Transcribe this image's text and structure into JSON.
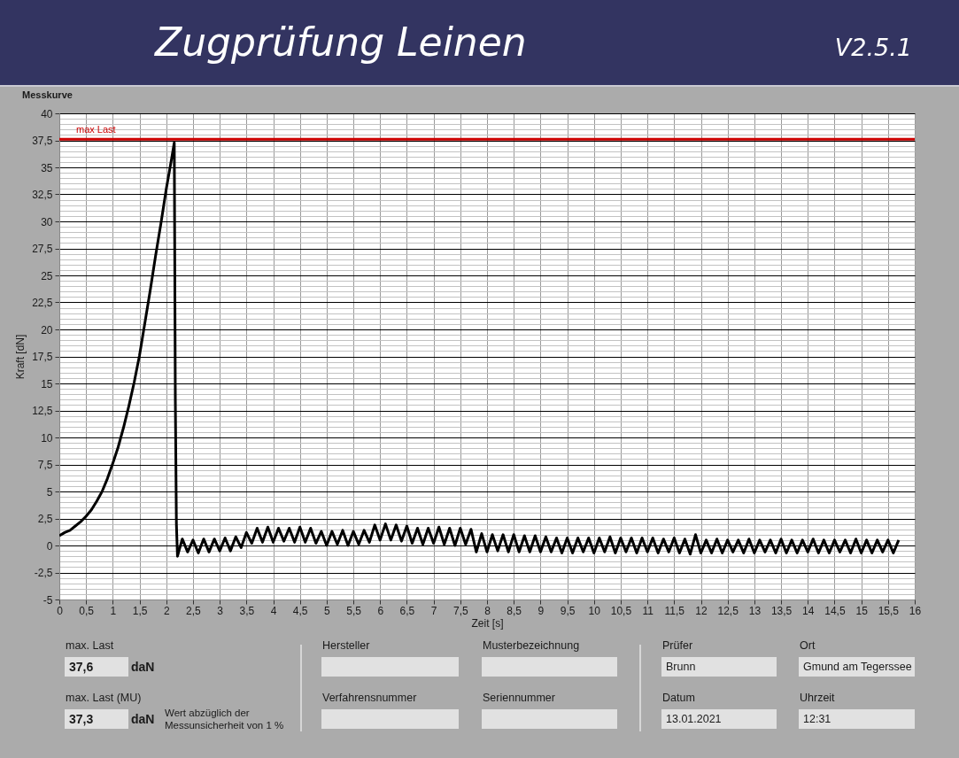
{
  "chart_data": {
    "type": "line",
    "title": "Zugprüfung Leinen",
    "subtitle": "Messkurve",
    "xlabel": "Zeit [s]",
    "ylabel": "Kraft [dN]",
    "annotations": [
      "V2.5.1",
      "max. Last",
      "37,6",
      "daN",
      "max. Last (MU)",
      "37,3",
      "daN",
      "Wert abzüglich der Messunsicherheit von 1 %",
      "Hersteller",
      "Verfahrensnummer",
      "Musterbezeichnung",
      "Seriennummer",
      "Prüfer",
      "Brunn",
      "Datum",
      "13.01.2021",
      "Ort",
      "Gmund am Tegerssee",
      "Uhrzeit",
      "12:31"
    ],
    "xlim": [
      0,
      16
    ],
    "ylim": [
      -5,
      40
    ],
    "xticks": [
      0,
      {
        "value": 0.5,
        "label": "0,5"
      },
      1,
      {
        "value": 1.5,
        "label": "1,5"
      },
      2,
      {
        "value": 2.5,
        "label": "2,5"
      },
      3,
      {
        "value": 3.5,
        "label": "3,5"
      },
      4,
      {
        "value": 4.5,
        "label": "4,5"
      },
      5,
      {
        "value": 5.5,
        "label": "5,5"
      },
      6,
      {
        "value": 6.5,
        "label": "6,5"
      },
      7,
      {
        "value": 7.5,
        "label": "7,5"
      },
      8,
      {
        "value": 8.5,
        "label": "8,5"
      },
      9,
      {
        "value": 9.5,
        "label": "9,5"
      },
      10,
      {
        "value": 10.5,
        "label": "10,5"
      },
      11,
      {
        "value": 11.5,
        "label": "11,5"
      },
      12,
      {
        "value": 12.5,
        "label": "12,5"
      },
      13,
      {
        "value": 13.5,
        "label": "13,5"
      },
      14,
      {
        "value": 14.5,
        "label": "14,5"
      },
      15,
      {
        "value": 15.5,
        "label": "15,5"
      },
      16
    ],
    "yticks": [
      -5,
      {
        "value": -4.5,
        "label": null
      },
      {
        "value": -4,
        "label": null
      },
      {
        "value": -3.5,
        "label": null
      },
      {
        "value": -3,
        "label": null
      },
      {
        "value": -2.5,
        "label": "-2,5"
      },
      {
        "value": -2,
        "label": null
      },
      {
        "value": -1.5,
        "label": null
      },
      {
        "value": -1,
        "label": null
      },
      {
        "value": -0.5,
        "label": null
      },
      0,
      {
        "value": 0.5,
        "label": null
      },
      {
        "value": 1,
        "label": null
      },
      {
        "value": 1.5,
        "label": null
      },
      {
        "value": 2,
        "label": null
      },
      {
        "value": 2.5,
        "label": "2,5"
      },
      {
        "value": 3,
        "label": null
      },
      {
        "value": 3.5,
        "label": null
      },
      {
        "value": 4,
        "label": null
      },
      {
        "value": 4.5,
        "label": null
      },
      5,
      {
        "value": 5.5,
        "label": null
      },
      {
        "value": 6,
        "label": null
      },
      {
        "value": 6.5,
        "label": null
      },
      {
        "value": 7,
        "label": null
      },
      {
        "value": 7.5,
        "label": "7,5"
      },
      {
        "value": 8,
        "label": null
      },
      {
        "value": 8.5,
        "label": null
      },
      {
        "value": 9,
        "label": null
      },
      {
        "value": 9.5,
        "label": null
      },
      10,
      {
        "value": 10.5,
        "label": null
      },
      {
        "value": 11,
        "label": null
      },
      {
        "value": 11.5,
        "label": null
      },
      {
        "value": 12,
        "label": null
      },
      {
        "value": 12.5,
        "label": "12,5"
      },
      {
        "value": 13,
        "label": null
      },
      {
        "value": 13.5,
        "label": null
      },
      {
        "value": 14,
        "label": null
      },
      {
        "value": 14.5,
        "label": null
      },
      15,
      {
        "value": 15.5,
        "label": null
      },
      {
        "value": 16,
        "label": null
      },
      {
        "value": 16.5,
        "label": null
      },
      {
        "value": 17,
        "label": null
      },
      {
        "value": 17.5,
        "label": "17,5"
      },
      {
        "value": 18,
        "label": null
      },
      {
        "value": 18.5,
        "label": null
      },
      {
        "value": 19,
        "label": null
      },
      {
        "value": 19.5,
        "label": null
      },
      20,
      {
        "value": 20.5,
        "label": null
      },
      {
        "value": 21,
        "label": null
      },
      {
        "value": 21.5,
        "label": null
      },
      {
        "value": 22,
        "label": null
      },
      {
        "value": 22.5,
        "label": "22,5"
      },
      {
        "value": 23,
        "label": null
      },
      {
        "value": 23.5,
        "label": null
      },
      {
        "value": 24,
        "label": null
      },
      {
        "value": 24.5,
        "label": null
      },
      25,
      {
        "value": 25.5,
        "label": null
      },
      {
        "value": 26,
        "label": null
      },
      {
        "value": 26.5,
        "label": null
      },
      {
        "value": 27,
        "label": null
      },
      {
        "value": 27.5,
        "label": "27,5"
      },
      {
        "value": 28,
        "label": null
      },
      {
        "value": 28.5,
        "label": null
      },
      {
        "value": 29,
        "label": null
      },
      {
        "value": 29.5,
        "label": null
      },
      30,
      {
        "value": 30.5,
        "label": null
      },
      {
        "value": 31,
        "label": null
      },
      {
        "value": 31.5,
        "label": null
      },
      {
        "value": 32,
        "label": null
      },
      {
        "value": 32.5,
        "label": "32,5"
      },
      {
        "value": 33,
        "label": null
      },
      {
        "value": 33.5,
        "label": null
      },
      {
        "value": 34,
        "label": null
      },
      {
        "value": 34.5,
        "label": null
      },
      35,
      {
        "value": 35.5,
        "label": null
      },
      {
        "value": 36,
        "label": null
      },
      {
        "value": 36.5,
        "label": null
      },
      {
        "value": 37,
        "label": null
      },
      {
        "value": 37.5,
        "label": "37,5"
      },
      {
        "value": 38,
        "label": null
      },
      {
        "value": 38.5,
        "label": null
      },
      {
        "value": 39,
        "label": null
      },
      {
        "value": 39.5,
        "label": null
      },
      40
    ],
    "grid": true,
    "ref_lines": [
      {
        "axis": "y",
        "value": 37.6,
        "label": "max Last",
        "color": "#cc0000"
      }
    ],
    "series": [
      {
        "color": "#000000",
        "x": [
          0,
          0.1,
          0.2,
          0.3,
          0.4,
          0.5,
          0.6,
          0.7,
          0.8,
          0.9,
          1,
          1.1,
          1.2,
          1.3,
          1.4,
          1.5,
          1.6,
          1.7,
          1.8,
          1.9,
          2,
          2.1,
          2.15,
          2.17,
          2.19,
          2.21,
          2.3,
          2.4,
          2.5,
          2.6,
          2.7,
          2.8,
          2.9,
          3,
          3.1,
          3.2,
          3.3,
          3.4,
          3.5,
          3.6,
          3.7,
          3.8,
          3.9,
          4,
          4.1,
          4.2,
          4.3,
          4.4,
          4.5,
          4.6,
          4.7,
          4.8,
          4.9,
          5,
          5.1,
          5.2,
          5.3,
          5.4,
          5.5,
          5.6,
          5.7,
          5.8,
          5.9,
          6,
          6.1,
          6.2,
          6.3,
          6.4,
          6.5,
          6.6,
          6.7,
          6.8,
          6.9,
          7,
          7.1,
          7.2,
          7.3,
          7.4,
          7.5,
          7.6,
          7.7,
          7.8,
          7.9,
          8,
          8.1,
          8.2,
          8.3,
          8.4,
          8.5,
          8.6,
          8.7,
          8.8,
          8.9,
          9,
          9.1,
          9.2,
          9.3,
          9.4,
          9.5,
          9.6,
          9.7,
          9.8,
          9.9,
          10,
          10.1,
          10.2,
          10.3,
          10.4,
          10.5,
          10.6,
          10.7,
          10.8,
          10.9,
          11,
          11.1,
          11.2,
          11.3,
          11.4,
          11.5,
          11.6,
          11.7,
          11.8,
          11.9,
          12,
          12.1,
          12.2,
          12.3,
          12.4,
          12.5,
          12.6,
          12.7,
          12.8,
          12.9,
          13,
          13.1,
          13.2,
          13.3,
          13.4,
          13.5,
          13.6,
          13.7,
          13.8,
          13.9,
          14,
          14.1,
          14.2,
          14.3,
          14.4,
          14.5,
          14.6,
          14.7,
          14.8,
          14.9,
          15,
          15.1,
          15.2,
          15.3,
          15.4,
          15.5,
          15.6,
          15.7
        ],
        "values": [
          0.9,
          1.2,
          1.4,
          1.8,
          2.2,
          2.7,
          3.3,
          4.1,
          5,
          6.2,
          7.6,
          9.1,
          10.9,
          12.9,
          15.1,
          17.6,
          20.6,
          23.6,
          26.8,
          29.8,
          33,
          35.8,
          37.3,
          13.4,
          2,
          -1,
          0.6,
          -0.6,
          0.5,
          -0.7,
          0.6,
          -0.6,
          0.6,
          -0.5,
          0.7,
          -0.5,
          0.8,
          -0.2,
          1.2,
          0.2,
          1.6,
          0.3,
          1.7,
          0.3,
          1.6,
          0.4,
          1.6,
          0.3,
          1.7,
          0.3,
          1.6,
          0.2,
          1.3,
          0,
          1.3,
          0.1,
          1.4,
          0,
          1.3,
          0.1,
          1.4,
          0.3,
          1.9,
          0.5,
          2,
          0.5,
          1.9,
          0.4,
          1.8,
          0.2,
          1.6,
          0.1,
          1.6,
          0.2,
          1.7,
          0.1,
          1.6,
          0,
          1.6,
          0.1,
          1.5,
          -0.6,
          1.1,
          -0.6,
          1,
          -0.5,
          1,
          -0.6,
          1,
          -0.6,
          0.9,
          -0.6,
          0.9,
          -0.6,
          0.8,
          -0.6,
          0.7,
          -0.7,
          0.7,
          -0.7,
          0.7,
          -0.6,
          0.7,
          -0.7,
          0.7,
          -0.6,
          0.8,
          -0.7,
          0.7,
          -0.6,
          0.7,
          -0.7,
          0.7,
          -0.6,
          0.7,
          -0.7,
          0.6,
          -0.6,
          0.7,
          -0.7,
          0.6,
          -0.8,
          1,
          -0.7,
          0.5,
          -0.7,
          0.6,
          -0.7,
          0.5,
          -0.6,
          0.5,
          -0.7,
          0.6,
          -0.7,
          0.5,
          -0.6,
          0.5,
          -0.7,
          0.6,
          -0.7,
          0.5,
          -0.7,
          0.5,
          -0.6,
          0.6,
          -0.7,
          0.5,
          -0.7,
          0.5,
          -0.6,
          0.5,
          -0.7,
          0.6,
          -0.7,
          0.5,
          -0.7,
          0.5,
          -0.6,
          0.5,
          -0.7,
          0.5
        ]
      }
    ]
  }
}
